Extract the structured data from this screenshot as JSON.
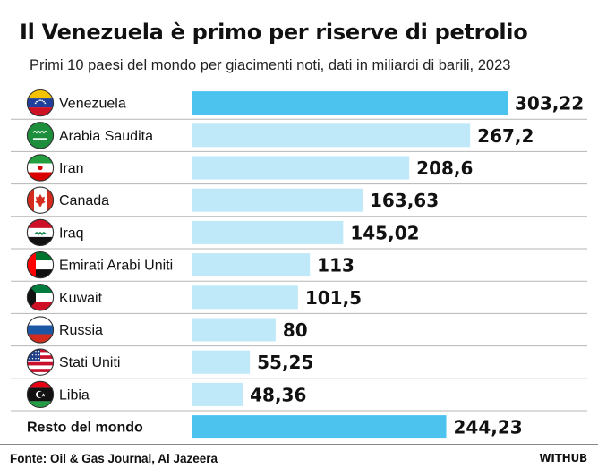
{
  "header": {
    "title": "Il Venezuela è primo per riserve di petrolio",
    "subtitle": "Primi 10 paesi del mondo per giacimenti noti, dati in miliardi di barili, 2023"
  },
  "footer": {
    "source": "Fonte: Oil & Gas Journal, Al Jazeera",
    "brand": "WITHUB"
  },
  "colors": {
    "highlight": "#4cc3ef",
    "bar": "#bfe9f8",
    "gridline": "#b5b5b5"
  },
  "chart_data": {
    "type": "bar",
    "orientation": "horizontal",
    "title": "Il Venezuela è primo per riserve di petrolio",
    "subtitle": "Primi 10 paesi del mondo per giacimenti noti, dati in miliardi di barili, 2023",
    "unit": "miliardi di barili",
    "categories": [
      "Venezuela",
      "Arabia Saudita",
      "Iran",
      "Canada",
      "Iraq",
      "Emirati Arabi Uniti",
      "Kuwait",
      "Russia",
      "Stati Uniti",
      "Libia",
      "Resto del mondo"
    ],
    "values": [
      303.22,
      267.2,
      208.6,
      163.63,
      145.02,
      113,
      101.5,
      80,
      55.25,
      48.36,
      244.23
    ],
    "value_labels": [
      "303,22",
      "267,2",
      "208,6",
      "163,63",
      "145,02",
      "113",
      "101,5",
      "80",
      "55,25",
      "48,36",
      "244,23"
    ],
    "flags": [
      "venezuela-flag-icon",
      "saudi-arabia-flag-icon",
      "iran-flag-icon",
      "canada-flag-icon",
      "iraq-flag-icon",
      "uae-flag-icon",
      "kuwait-flag-icon",
      "russia-flag-icon",
      "usa-flag-icon",
      "libya-flag-icon",
      ""
    ],
    "highlighted": [
      "Venezuela",
      "Resto del mondo"
    ],
    "xlim": [
      0,
      303.22
    ],
    "legend": "none",
    "grid": false
  }
}
